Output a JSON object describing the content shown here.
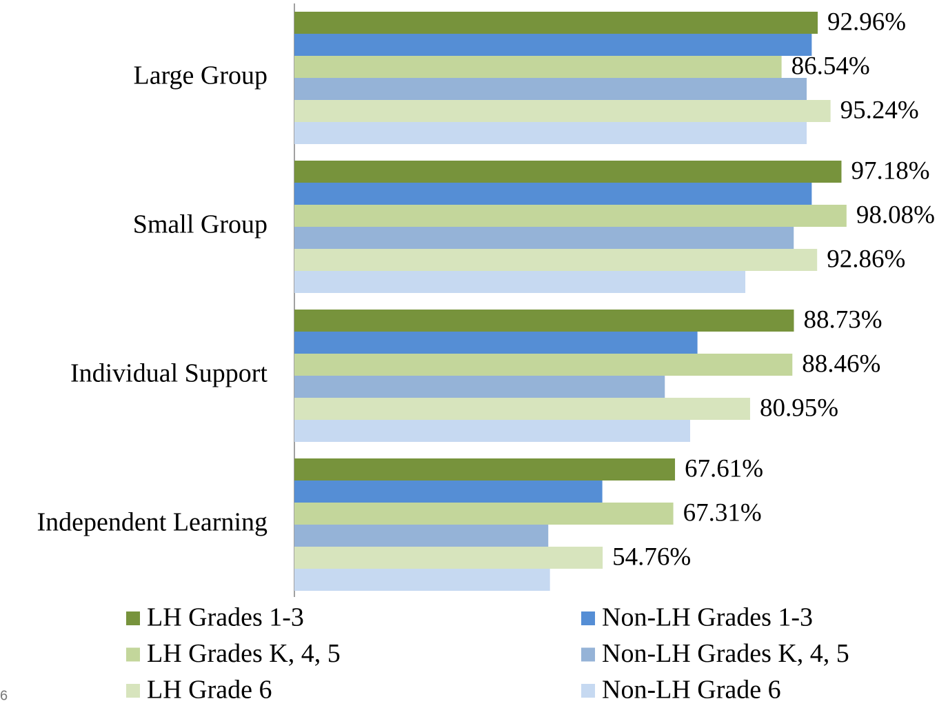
{
  "page_number": "6",
  "chart_data": {
    "type": "bar",
    "orientation": "horizontal",
    "categories": [
      "Large Group",
      "Small Group",
      "Individual Support",
      "Independent Learning"
    ],
    "xlim": [
      0,
      100
    ],
    "legend": "bottom",
    "series": [
      {
        "name": "LH Grades 1-3",
        "color": "#77933c",
        "values": [
          92.96,
          97.18,
          88.73,
          67.61
        ],
        "value_labels": [
          "92.96%",
          "97.18%",
          "88.73%",
          "67.61%"
        ]
      },
      {
        "name": "Non-LH Grades 1-3",
        "color": "#558ed5",
        "values": [
          91.9,
          91.9,
          71.6,
          54.7
        ]
      },
      {
        "name": "LH Grades K, 4, 5",
        "color": "#c3d69b",
        "values": [
          86.54,
          98.08,
          88.46,
          67.31
        ],
        "value_labels": [
          "86.54%",
          "98.08%",
          "88.46%",
          "67.31%"
        ]
      },
      {
        "name": "Non-LH Grades K, 4, 5",
        "color": "#95b3d7",
        "values": [
          91.0,
          88.7,
          65.8,
          45.1
        ]
      },
      {
        "name": "LH Grade 6",
        "color": "#d7e4bd",
        "values": [
          95.24,
          92.86,
          80.95,
          54.76
        ],
        "value_labels": [
          "95.24%",
          "92.86%",
          "80.95%",
          "54.76%"
        ]
      },
      {
        "name": "Non-LH Grade 6",
        "color": "#c6d9f1",
        "values": [
          91.0,
          80.1,
          70.3,
          45.4
        ]
      }
    ]
  }
}
